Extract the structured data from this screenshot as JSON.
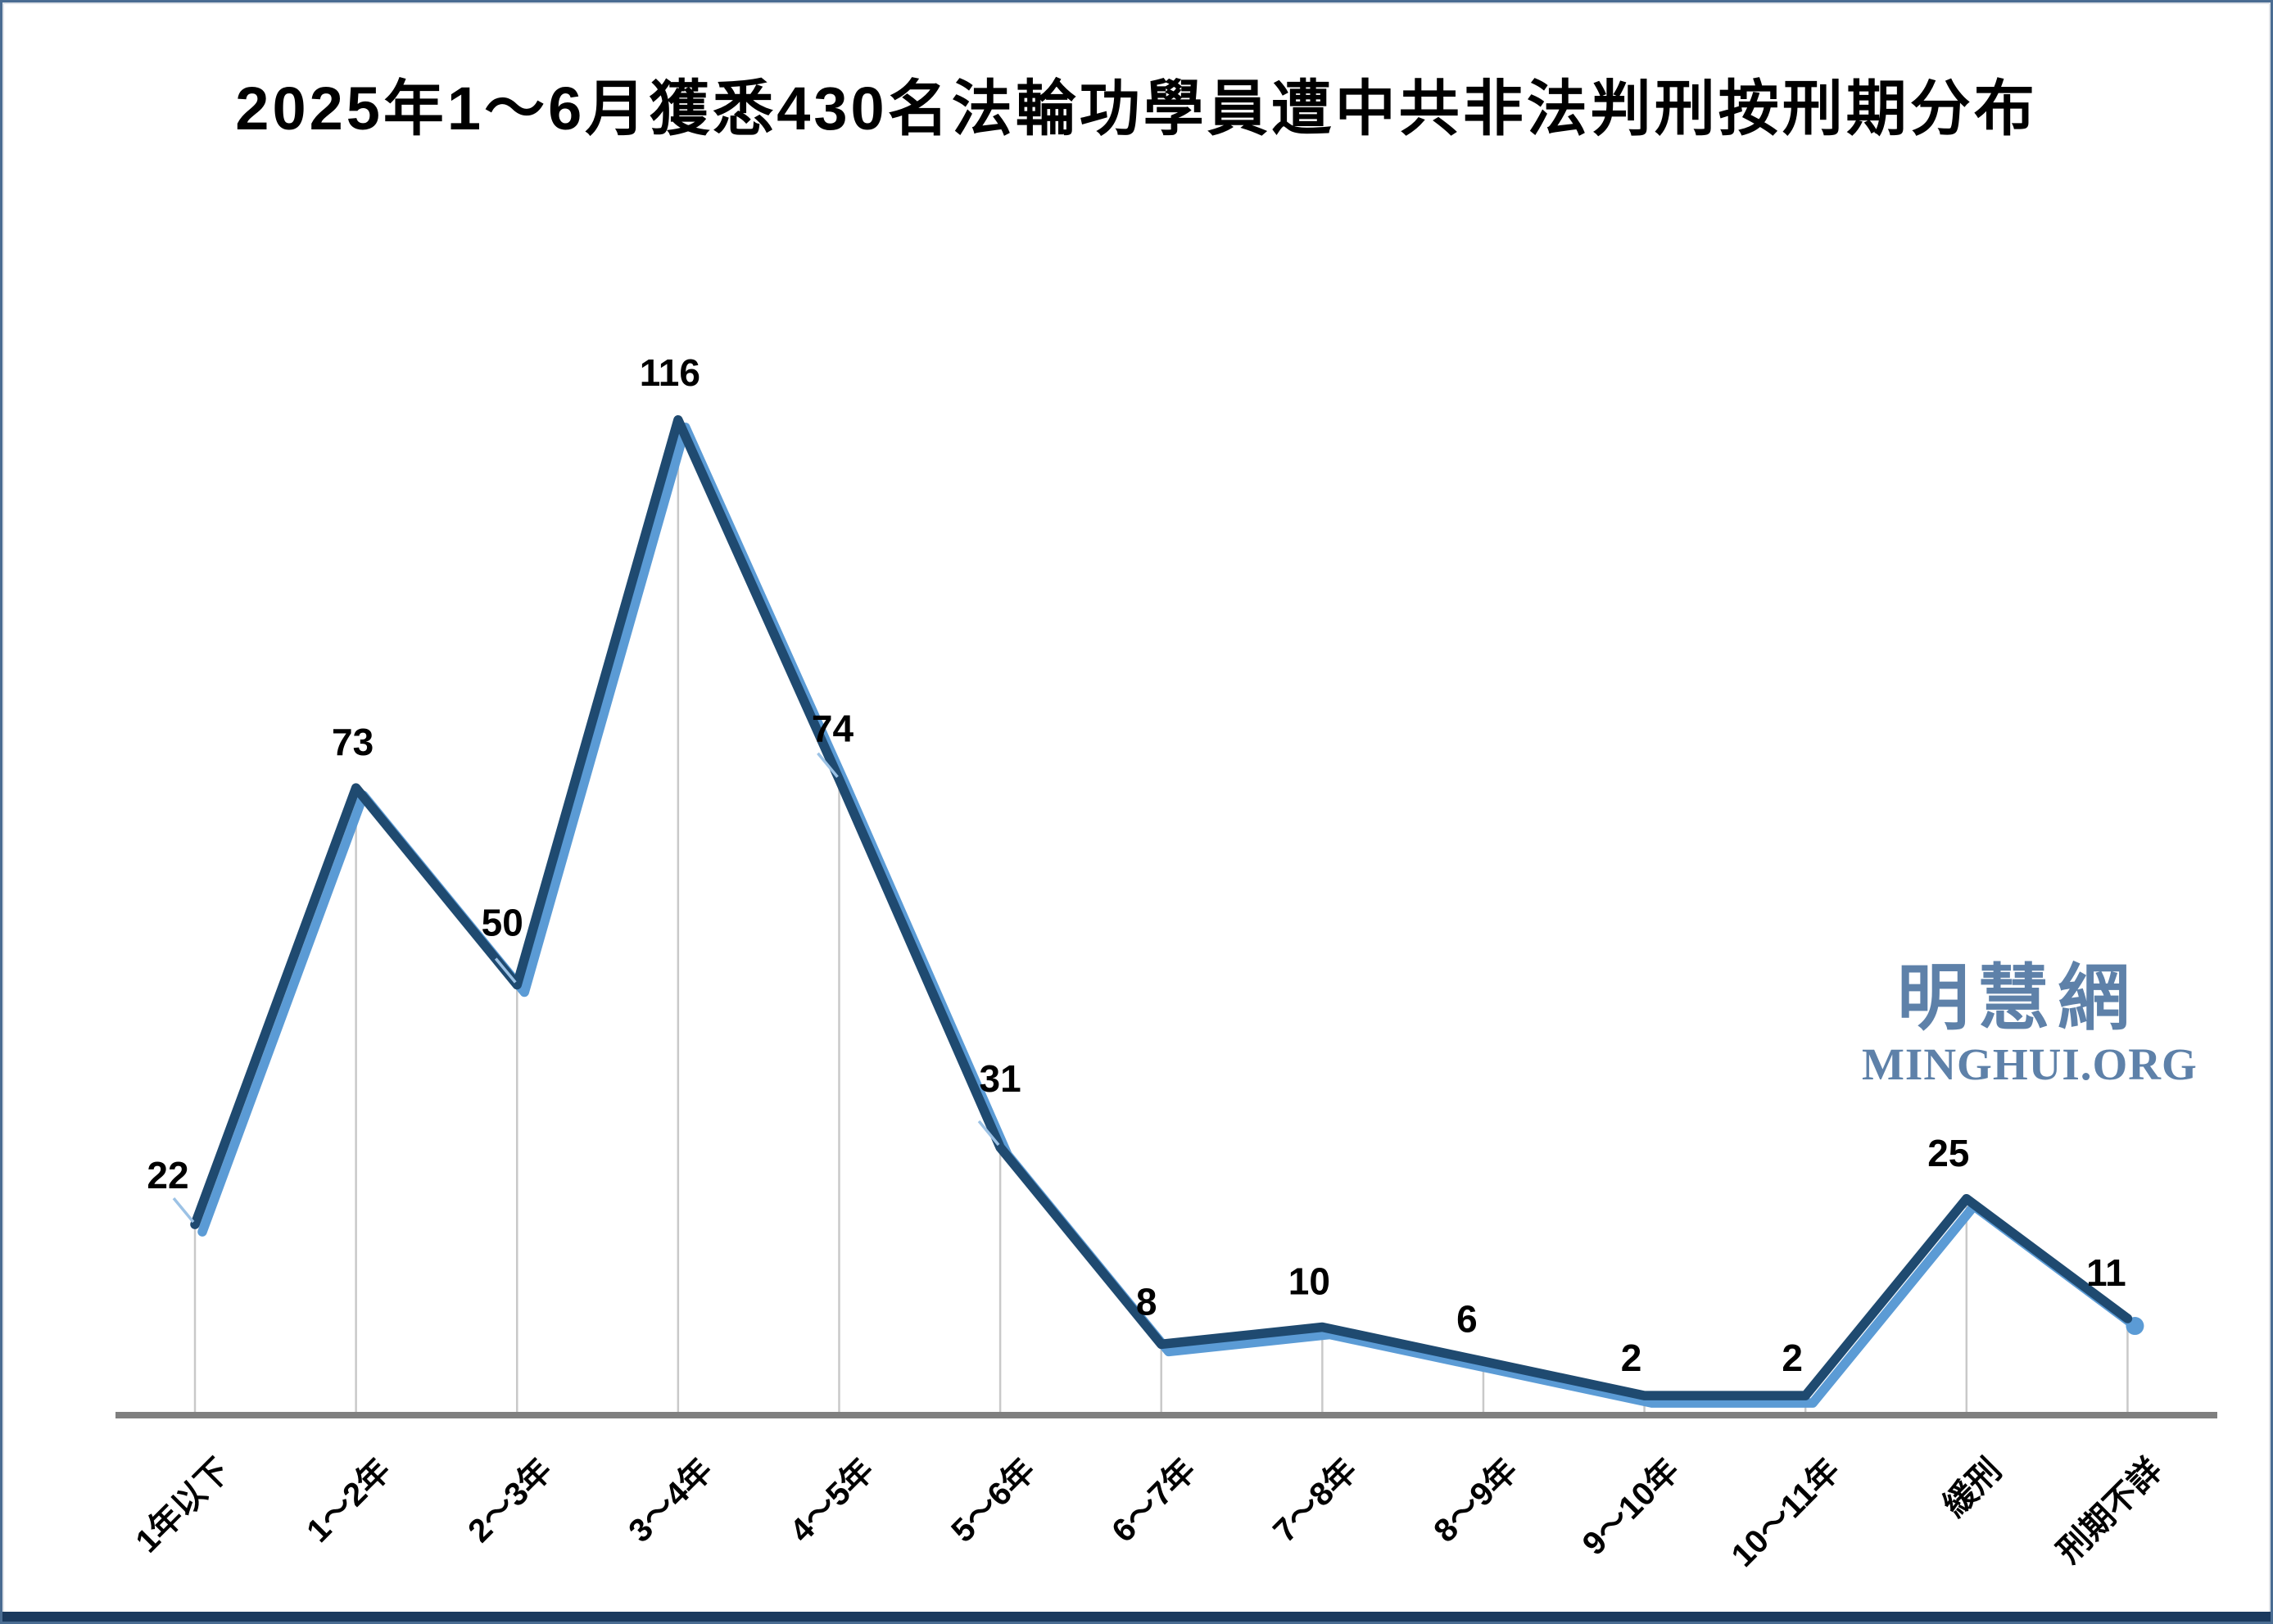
{
  "title": "2025年1～6月獲悉430名法輪功學員遭中共非法判刑按刑期分布",
  "watermark": {
    "cjk": "明慧網",
    "latin": "MINGHUI.ORG",
    "color": "#5e81a9"
  },
  "frame": {
    "border_color": "#4a6c92",
    "bottom_bar_color": "#1b3a5e"
  },
  "chart_data": {
    "type": "line",
    "title": "2025年1～6月獲悉430名法輪功學員遭中共非法判刑按刑期分布",
    "categories": [
      "1年以下",
      "1～2年",
      "2～3年",
      "3～4年",
      "4～5年",
      "5～6年",
      "6～7年",
      "7～8年",
      "8～9年",
      "9～10年",
      "10～11年",
      "緩刑",
      "刑期不詳"
    ],
    "values": [
      22,
      73,
      50,
      116,
      74,
      31,
      8,
      10,
      6,
      2,
      2,
      25,
      11
    ],
    "total": 430,
    "xlabel": "",
    "ylabel": "",
    "ylim": [
      0,
      120
    ],
    "grid": "vertical-drop-lines",
    "legend": "none",
    "line_color": "#1f4a70",
    "shadow_color": "#5b9bd5",
    "leader_color": "#9cc2e5",
    "dropline_color": "#c9c9c9",
    "axis_color": "#7f7f7f",
    "value_label_color": "#000000"
  }
}
